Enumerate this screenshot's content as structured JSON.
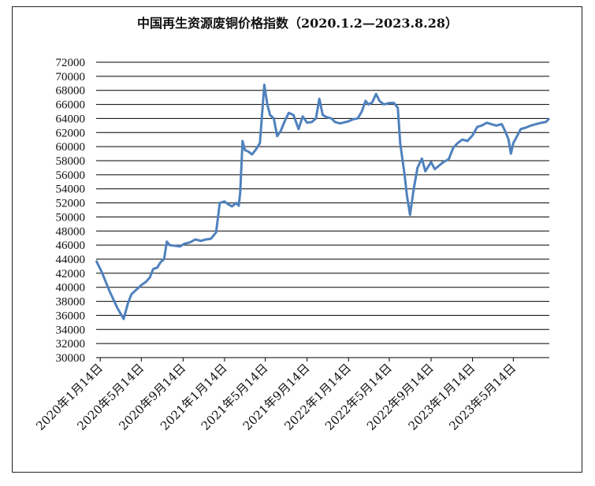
{
  "chart_data": {
    "type": "line",
    "title": "中国再生资源废铜价格指数（2020.1.2—2023.8.28）",
    "xlabel": "",
    "ylabel": "",
    "ylim": [
      30000,
      72000
    ],
    "ytick_step": 2000,
    "grid": true,
    "x_tick_labels": [
      "2020年1月14日",
      "2020年5月14日",
      "2020年9月14日",
      "2021年1月14日",
      "2021年5月14日",
      "2021年9月14日",
      "2022年1月14日",
      "2022年5月14日",
      "2022年9月14日",
      "2023年1月14日",
      "2023年5月14日"
    ],
    "x_tick_dates": [
      "2020-01-14",
      "2020-05-14",
      "2020-09-14",
      "2021-01-14",
      "2021-05-14",
      "2021-09-14",
      "2022-01-14",
      "2022-05-14",
      "2022-09-14",
      "2023-01-14",
      "2023-05-14"
    ],
    "x_range": [
      "2020-01-02",
      "2023-08-28"
    ],
    "series": [
      {
        "name": "",
        "color": "#4f81bd",
        "points": [
          [
            "2020-01-02",
            43800
          ],
          [
            "2020-01-20",
            42000
          ],
          [
            "2020-02-10",
            39500
          ],
          [
            "2020-03-05",
            37000
          ],
          [
            "2020-03-23",
            35500
          ],
          [
            "2020-04-05",
            37800
          ],
          [
            "2020-04-15",
            39000
          ],
          [
            "2020-04-28",
            39600
          ],
          [
            "2020-05-14",
            40300
          ],
          [
            "2020-05-28",
            40800
          ],
          [
            "2020-06-08",
            41400
          ],
          [
            "2020-06-18",
            42600
          ],
          [
            "2020-06-30",
            42800
          ],
          [
            "2020-07-10",
            43600
          ],
          [
            "2020-07-20",
            44000
          ],
          [
            "2020-07-28",
            46500
          ],
          [
            "2020-08-05",
            46000
          ],
          [
            "2020-08-20",
            45900
          ],
          [
            "2020-09-05",
            45800
          ],
          [
            "2020-09-18",
            46200
          ],
          [
            "2020-10-05",
            46400
          ],
          [
            "2020-10-20",
            46800
          ],
          [
            "2020-11-05",
            46600
          ],
          [
            "2020-11-20",
            46800
          ],
          [
            "2020-12-05",
            46900
          ],
          [
            "2020-12-20",
            47800
          ],
          [
            "2020-12-31",
            52000
          ],
          [
            "2021-01-14",
            52200
          ],
          [
            "2021-01-25",
            51800
          ],
          [
            "2021-02-05",
            51500
          ],
          [
            "2021-02-18",
            52000
          ],
          [
            "2021-02-25",
            51600
          ],
          [
            "2021-03-01",
            53500
          ],
          [
            "2021-03-08",
            60800
          ],
          [
            "2021-03-15",
            59500
          ],
          [
            "2021-03-25",
            59300
          ],
          [
            "2021-04-05",
            58900
          ],
          [
            "2021-04-15",
            59500
          ],
          [
            "2021-04-28",
            60500
          ],
          [
            "2021-05-05",
            65000
          ],
          [
            "2021-05-11",
            68800
          ],
          [
            "2021-05-20",
            66000
          ],
          [
            "2021-05-28",
            64500
          ],
          [
            "2021-06-08",
            64000
          ],
          [
            "2021-06-18",
            61500
          ],
          [
            "2021-06-28",
            62200
          ],
          [
            "2021-07-10",
            63600
          ],
          [
            "2021-07-22",
            64800
          ],
          [
            "2021-08-05",
            64500
          ],
          [
            "2021-08-20",
            62500
          ],
          [
            "2021-09-01",
            64300
          ],
          [
            "2021-09-14",
            63400
          ],
          [
            "2021-09-28",
            63500
          ],
          [
            "2021-10-10",
            64000
          ],
          [
            "2021-10-20",
            66800
          ],
          [
            "2021-10-30",
            64500
          ],
          [
            "2021-11-10",
            64200
          ],
          [
            "2021-11-25",
            64000
          ],
          [
            "2021-12-05",
            63500
          ],
          [
            "2021-12-20",
            63300
          ],
          [
            "2022-01-14",
            63600
          ],
          [
            "2022-01-28",
            63900
          ],
          [
            "2022-02-10",
            64000
          ],
          [
            "2022-02-22",
            65000
          ],
          [
            "2022-03-05",
            66500
          ],
          [
            "2022-03-14",
            66000
          ],
          [
            "2022-03-25",
            66300
          ],
          [
            "2022-04-05",
            67500
          ],
          [
            "2022-04-15",
            66500
          ],
          [
            "2022-04-28",
            66000
          ],
          [
            "2022-05-14",
            66200
          ],
          [
            "2022-05-28",
            66200
          ],
          [
            "2022-06-08",
            65500
          ],
          [
            "2022-06-15",
            60500
          ],
          [
            "2022-06-28",
            56000
          ],
          [
            "2022-07-05",
            53000
          ],
          [
            "2022-07-14",
            50300
          ],
          [
            "2022-07-25",
            54000
          ],
          [
            "2022-08-05",
            57000
          ],
          [
            "2022-08-18",
            58300
          ],
          [
            "2022-08-28",
            56500
          ],
          [
            "2022-09-14",
            57800
          ],
          [
            "2022-09-25",
            56800
          ],
          [
            "2022-10-05",
            57200
          ],
          [
            "2022-10-20",
            57800
          ],
          [
            "2022-11-05",
            58200
          ],
          [
            "2022-11-18",
            59800
          ],
          [
            "2022-12-01",
            60500
          ],
          [
            "2022-12-15",
            61000
          ],
          [
            "2022-12-30",
            60800
          ],
          [
            "2023-01-14",
            61600
          ],
          [
            "2023-01-28",
            62800
          ],
          [
            "2023-02-10",
            63000
          ],
          [
            "2023-02-25",
            63400
          ],
          [
            "2023-03-10",
            63200
          ],
          [
            "2023-03-25",
            63000
          ],
          [
            "2023-04-10",
            63200
          ],
          [
            "2023-04-20",
            62200
          ],
          [
            "2023-04-30",
            61000
          ],
          [
            "2023-05-07",
            59000
          ],
          [
            "2023-05-14",
            60500
          ],
          [
            "2023-05-25",
            61500
          ],
          [
            "2023-06-05",
            62500
          ],
          [
            "2023-06-20",
            62700
          ],
          [
            "2023-07-05",
            63000
          ],
          [
            "2023-07-20",
            63200
          ],
          [
            "2023-08-05",
            63400
          ],
          [
            "2023-08-18",
            63500
          ],
          [
            "2023-08-28",
            64000
          ]
        ]
      }
    ]
  }
}
